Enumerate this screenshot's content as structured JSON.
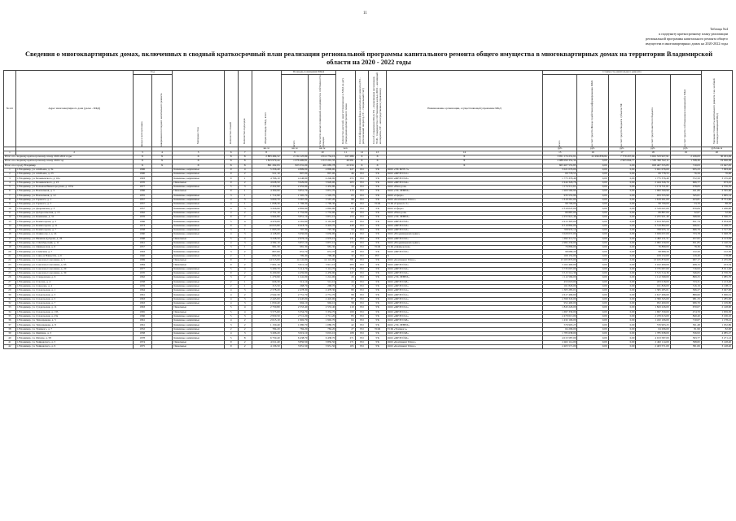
{
  "page_number": "11",
  "note_lines": [
    "Таблица №4",
    "к подпункту краткосрочному плану реализации",
    "региональной программы капитального ремонта общего",
    "имущества в многоквартирных домах на 2020-2022 годы"
  ],
  "title": "Сведения о многоквартирных домах, включенных в сводный краткосрочный план реализации региональной программы капитального ремонта общего имущества в многоквартирных домах на территории Владимирской области на 2020 - 2022 годы",
  "header": {
    "col_num": "№ п/п",
    "col_address": "Адрес многоквартирного дома (далее - МКД)",
    "group_year": "Год",
    "col_year_built": "ввода в эксплуатацию",
    "col_year_repair": "завершения последнего капитального ремонта",
    "col_material": "Материал стен",
    "col_floors": "Количество этажей",
    "col_entrances": "Количество подъездов",
    "col_area_total": "общая площадь МКД, всего",
    "group_area": "Площадь помещений МКД",
    "col_area_all": "всего",
    "col_area_owned": "в том числе жилых помещений, находящихся в собственности граждан",
    "col_residents": "Количество жителей, зарегистрированных в МКД на дату утверждения краткосрочного плана",
    "col_fund": "Способ формирования фонда капитального ремонта (РО - региональный оператор, СС - специальный счет)",
    "col_mgmt": "Способ управления МКД (УК - управляющая организация, ТСЖ - товарищество собственников жилья, ЖСК - жилищный кооператив, НУ - непосредственное управление)",
    "col_org": "Наименование организации, осуществляющей управление МКД",
    "group_cost": "Стоимость капитального ремонта",
    "col_cost_all": "всего",
    "col_cost_fed": "за счет средств Фонда содействия реформированию ЖКХ",
    "col_cost_reg": "за счет средств бюджета субъекта РФ",
    "col_cost_mun": "за счет средств местного бюджета",
    "col_cost_own": "за счет средств собственников помещений в МКД",
    "col_unit_cost": "Удельная стоимость капитального ремонта 1 кв. м общей площади помещений МКД",
    "col_limit": "Предельная стоимость капитального ремонта 1 кв. м общей площади помещений МКД",
    "units": [
      "кв. м",
      "кв. м",
      "кв. м",
      "чел.",
      "руб.",
      "руб.",
      "руб.",
      "руб.",
      "руб.",
      "руб./кв. м",
      "руб./кв. м"
    ],
    "col_numbers": [
      "1",
      "2",
      "3",
      "4",
      "5",
      "6",
      "7",
      "8",
      "9",
      "10",
      "11",
      "12",
      "13",
      "14",
      "15",
      "16",
      "17",
      "18",
      "19",
      "20"
    ]
  },
  "totals": [
    {
      "label": "Итого по сводному краткосрочному плану 2020-2022 годы",
      "x": "X",
      "area": "2 883 484,52",
      "live": "2 134 125,99",
      "owned": "2 012 754,16",
      "res": "107 086",
      "org": "X",
      "cost": "3 951 174 231,91",
      "fed": "22 296 858,84",
      "reg": "7 779 457,94",
      "mun": "3 601 533 927,91",
      "own": "2 226,63",
      "lim": "30 291,49"
    },
    {
      "label": "Итого по сводному краткосрочному плану 2020 год",
      "x": "X",
      "area": "1 823 979,44",
      "live": "1 076 400,81",
      "owned": "1 013 291,33",
      "res": "49 091",
      "org": "X",
      "cost": "2 088 090 352,34",
      "fed": "0,00",
      "reg": "2 963 664,77",
      "mun": "1 565 390 322,11",
      "own": "1 538,30",
      "lim": "19 026,38"
    },
    {
      "label": "Итого по городу Владимир",
      "x": "X",
      "area": "861 292,93",
      "live": "823 331,00",
      "owned": "461 685,78",
      "res": "22 034",
      "org": "X",
      "cost": "603 407 555,85",
      "fed": "0,00",
      "reg": "0,00",
      "mun": "603 407 555,85",
      "own": "710,03",
      "lim": "15 647,05"
    }
  ],
  "rows": [
    {
      "n": "1",
      "a": "г. Владимир, ул. Алябьева, д. 3а",
      "y": "1996",
      "m": "Каменные, кирпичные",
      "f": "9",
      "e": "4",
      "t": "5 256,40",
      "l": "4 809,00",
      "o": "4 809,00",
      "p": "227",
      "fd": "РО",
      "mg": "УК",
      "org": "ООО «УК ЖЭУ-5»",
      "c": "5 021 076,00",
      "u": "955,23",
      "lim": "7 093,46"
    },
    {
      "n": "2",
      "a": "г. Владимир, ул. Алябьева, д. 23",
      "y": "1990",
      "m": "Каменные, кирпичные",
      "f": "9",
      "e": "2",
      "t": "911,10",
      "l": "807,00",
      "o": "807,00",
      "p": "46",
      "fd": "РО",
      "mg": "УК",
      "org": "ООО «ЖРЭП №1»",
      "c": "69 778,55",
      "u": "76,59",
      "lim": "76,90"
    },
    {
      "n": "3",
      "a": "г. Владимир, ул. Безыменского, д. 16а",
      "y": "1993",
      "m": "Каменные, кирпичные",
      "f": "9",
      "e": "1",
      "t": "4 766,10",
      "l": "4 246,90",
      "o": "4 246,90",
      "p": "255",
      "fd": "РО",
      "mg": "УК",
      "org": "ООО «ЖРЭП №3»",
      "c": "1 775 376,49",
      "u": "372,50",
      "lim": "3 135,20"
    },
    {
      "n": "4",
      "a": "г. Владимир, ул. Безыменского, д. 23",
      "y": "1970",
      "m": "Панельные",
      "f": "9",
      "e": "2",
      "t": "4 028,50",
      "l": "3 929,00",
      "o": "3 929,00",
      "p": "203",
      "fd": "РО",
      "mg": "УК",
      "org": "ООО «ЖРЭП №4»",
      "c": "2 444 326,76",
      "u": "606,77",
      "lim": "673,45"
    },
    {
      "n": "5",
      "a": "г. Владимир, ул. Большая Нижегородская, д. 103а",
      "y": "1977",
      "m": "Каменные, кирпичные",
      "f": "5",
      "e": "3",
      "t": "2 452,90",
      "l": "2 452,90",
      "o": "2 452,90",
      "p": "74",
      "fd": "РО",
      "mg": "УК",
      "org": "ООО «Наш дом»",
      "c": "1 174 511,61",
      "u": "478,83",
      "lim": "4 376,70"
    },
    {
      "n": "6",
      "a": "г. Владимир, ул. Вокзальная, д. 3",
      "y": "1966",
      "m": "Панельные",
      "f": "9",
      "e": "1",
      "t": "4 300,90",
      "l": "3 851,70",
      "o": "3 851,70",
      "p": "213",
      "fd": "РО",
      "mg": "УК",
      "org": "ООО «УК ЛЕВЕЛ»",
      "c": "1 900 560,90",
      "u": "441,89",
      "lim": "2 565,60"
    },
    {
      "n": "7",
      "a": "г. Владимир, ул. Вокзальная, д. 12",
      "y": "1955",
      "m": "Каменные, кирпичные",
      "f": "3",
      "e": "1",
      "t": "1 712,90",
      "l": "1 505,70",
      "o": "1 505,70",
      "p": "63",
      "fd": "РО",
      "mg": "УК",
      "org": "ООО «Сфера»",
      "c": "933 555,90",
      "u": "545,01",
      "lim": "1 665,14"
    },
    {
      "n": "8",
      "a": "г. Владимир, ул. Горького, д. 1",
      "y": "1957",
      "m": "Каменные, кирпичные",
      "f": "4",
      "e": "3",
      "t": "3 820,70",
      "l": "3 567,20",
      "o": "3 567,20",
      "p": "98",
      "fd": "РО",
      "mg": "УК",
      "org": "ООО «Континент Плюс»",
      "c": "1 619 261,00",
      "u": "423,81",
      "lim": "8 751,60"
    },
    {
      "n": "9",
      "a": "г. Владимир, ул. Горького, д. 5",
      "y": "1957",
      "m": "Каменные, кирпичные",
      "f": "4",
      "e": "1",
      "t": "1 838,30",
      "l": "1 796,30",
      "o": "1 796,30",
      "p": "87",
      "fd": "РО",
      "mg": "ТСЖ",
      "org": "ТСЖ «Горького 5»",
      "c": "98 709,00",
      "u": "53,70",
      "lim": "88,50"
    },
    {
      "n": "10",
      "a": "г. Владимир, ул. Дворянская, д. 3",
      "y": "1957",
      "m": "Каменные, кирпичные",
      "f": "4",
      "e": "3",
      "t": "3 456,90",
      "l": "2 892,90",
      "o": "2 892,90",
      "p": "110",
      "fd": "РО",
      "mg": "УК",
      "org": "ООО «Сфера»",
      "c": "2 319 047,00",
      "u": "670,84",
      "lim": "1 206,90"
    },
    {
      "n": "11",
      "a": "г. Владимир, ул. Добросельская, д. 13",
      "y": "1962",
      "m": "Каменные, кирпичные",
      "f": "4",
      "e": "2",
      "t": "2 751,10",
      "l": "1 752,00",
      "o": "1 752,00",
      "p": "65",
      "fd": "РО",
      "mg": "УК",
      "org": "ООО «Наш дом»",
      "c": "89 887,00",
      "u": "32,67",
      "lim": "32,90"
    },
    {
      "n": "12",
      "a": "г. Владимир, ул. Каманина, д. 31",
      "y": "1976",
      "m": "Каменные, кирпичные",
      "f": "9",
      "e": "2",
      "t": "3 964,80",
      "l": "3 851,10",
      "o": "3 851,10",
      "p": "153",
      "fd": "РО",
      "mg": "УК",
      "org": "ООО «УК ЛЕВЕЛ»",
      "c": "2 255 921,46",
      "u": "568,99",
      "lim": "3 506,57"
    },
    {
      "n": "13",
      "a": "г. Владимир, ул. Комиссарова, д. 3",
      "y": "1966",
      "m": "Каменные, кирпичные",
      "f": "5",
      "e": "4",
      "t": "4 470,00",
      "l": "4 191,60",
      "o": "4 191,60",
      "p": "197",
      "fd": "РО",
      "mg": "УК",
      "org": "ООО «ЖРЭП №3»",
      "c": "2 913 305,00",
      "u": "651,74",
      "lim": "3 054,92"
    },
    {
      "n": "14",
      "a": "г. Владимир, ул. Комиссарова, д. 51",
      "y": "1973",
      "m": "Каменные, кирпичные",
      "f": "9",
      "e": "4",
      "t": "10 053,80",
      "l": "9 418,70",
      "o": "9 418,70",
      "p": "448",
      "fd": "РО",
      "mg": "УК",
      "org": "ООО «ЖРЭП №3»",
      "c": "9 519 892,00",
      "u": "946,91",
      "lim": "5 248,57"
    },
    {
      "n": "15",
      "a": "г. Владимир, ул. Комиссарова, д. 7",
      "y": "1958",
      "m": "Каменные, кирпичные",
      "f": "3",
      "e": "1",
      "t": "1 063,20",
      "l": "797,30",
      "o": "797,30",
      "p": "53",
      "fd": "РО",
      "mg": "УК",
      "org": "ООО «ЖРЭП №3»",
      "c": "708 935,14",
      "u": "666,79",
      "lim": "1 517,50"
    },
    {
      "n": "16",
      "a": "г. Владимир, ул. Ленина пр-т, д. 24",
      "y": "1960",
      "m": "Каменные, кирпичные",
      "f": "4",
      "e": "3",
      "t": "4 128,00",
      "l": "3 650,00",
      "o": "3 650,00",
      "p": "212",
      "fd": "РО",
      "mg": "УК",
      "org": "ООО «Владимиржилсервис»",
      "c": "3 029 037,00",
      "u": "733,78",
      "lim": "5 048,78"
    },
    {
      "n": "17",
      "a": "г. Владимир, ул. Нижняя Дуброва, д. 26",
      "y": "1968",
      "m": "Панельные",
      "f": "5",
      "e": "4",
      "t": "3 258,50",
      "l": "2 976,10",
      "o": "2 976,10",
      "p": "131",
      "fd": "РО",
      "mg": "УК",
      "org": "ООО «ЖРЭП №5»",
      "c": "1 492 211,51",
      "u": "457,95",
      "lim": "4 123,84"
    },
    {
      "n": "18",
      "a": "г. Владимир, пр-т Октябрьский, д. 11",
      "y": "1961",
      "m": "Каменные, кирпичные",
      "f": "4",
      "e": "3",
      "t": "4 582,10",
      "l": "3 857,10",
      "o": "3 857,10",
      "p": "155",
      "fd": "РО",
      "mg": "УК",
      "org": "ООО «Владимиржилсервис»",
      "c": "2 982 230,00",
      "u": "651,85",
      "lim": "1 140,33"
    },
    {
      "n": "19",
      "a": "г. Владимир, ул. Офицерская, д. 6",
      "y": "1957",
      "m": "Каменные, кирпичные",
      "f": "3",
      "e": "1",
      "t": "981,30",
      "l": "981,30",
      "o": "981,30",
      "p": "40",
      "fd": "РО",
      "mg": "ТСЖ",
      "org": "ТСЖ «Офицерская»",
      "c": "76 899,00",
      "u": "78,36",
      "lim": "78,50"
    },
    {
      "n": "20",
      "a": "г. Владимир, ул. Слемская, д. 7",
      "y": "1963",
      "m": "Каменные, кирпичные",
      "f": "3",
      "e": "2",
      "t": "807,60",
      "l": "651,70",
      "o": "651,70",
      "p": "28",
      "fd": "РО",
      "mg": "УК",
      "org": "ООО «ЖРЭП №5»",
      "c": "98 689,20",
      "u": "122,20",
      "lim": "122,30"
    },
    {
      "n": "21",
      "a": "г. Владимир, ул. Сакко и Ванцетти, д. 6",
      "y": "1940",
      "m": "Каменные, кирпичные",
      "f": "2",
      "e": "1",
      "t": "843,50",
      "l": "799,40",
      "o": "799,40",
      "p": "32",
      "fd": "РО",
      "mg": "НУ",
      "org": "X",
      "c": "109 152,00",
      "u": "129,40",
      "lim": "178,08"
    },
    {
      "n": "22",
      "a": "г. Владимир, ул. Соколова-Соколенка, д. 5",
      "y": "1969",
      "m": "Панельные",
      "f": "9",
      "e": "7",
      "t": "14 513,00",
      "l": "14 141,00",
      "o": "14 141,00",
      "p": "581",
      "fd": "РО",
      "mg": "УК",
      "org": "ООО «Континент Плюс»",
      "c": "13 165 870,00",
      "u": "907,17",
      "lim": "2 235,83"
    },
    {
      "n": "23",
      "a": "г. Владимир, ул. Соколова-Соколенка, д. 6б",
      "y": "1984",
      "m": "Панельные",
      "f": "9",
      "e": "2",
      "t": "7 601,10",
      "l": "5 911,10",
      "o": "5 911,10",
      "p": "283",
      "fd": "РО",
      "mg": "УК",
      "org": "ООО «ЖРЭП №2»",
      "c": "3 102 400,09",
      "u": "408,15",
      "lim": "453,34"
    },
    {
      "n": "24",
      "a": "г. Владимир, ул. Соколова-Соколенка, д. 20",
      "y": "1977",
      "m": "Каменные, кирпичные",
      "f": "5",
      "e": "4",
      "t": "5 209,70",
      "l": "5 114,70",
      "o": "5 114,70",
      "p": "176",
      "fd": "РО",
      "mg": "УК",
      "org": "ООО «ЖРЭП №2»",
      "c": "3 735 007,00",
      "u": "716,93",
      "lim": "8 011,46"
    },
    {
      "n": "25",
      "a": "г. Владимир, ул. Соколова-Соколенка, д. 30",
      "y": "1970",
      "m": "Каменные, кирпичные",
      "f": "9",
      "e": "2",
      "t": "6 430,90",
      "l": "4 459,90",
      "o": "4 459,90",
      "p": "247",
      "fd": "РО",
      "mg": "УК",
      "org": "ООО «ЖРЭП №2»",
      "c": "3 515 514,36",
      "u": "546,65",
      "lim": "4 376,70"
    },
    {
      "n": "26",
      "a": "г. Владимир, ул. Ставровская, д. 6",
      "y": "1962",
      "m": "Каменные, кирпичные",
      "f": "3",
      "e": "2",
      "t": "1 279,90",
      "l": "1 241,00",
      "o": "1 241,00",
      "p": "43",
      "fd": "РО",
      "mg": "УК",
      "org": "ООО «УК ЛЕВЕЛ»",
      "c": "1 112 569,00",
      "u": "869,25",
      "lim": "1 085,70"
    },
    {
      "n": "27",
      "a": "г. Владимир, ул. Стасова, д. 4",
      "y": "1958",
      "m": "Каменные, кирпичные",
      "f": "2",
      "e": "1",
      "t": "626,30",
      "l": "512,10",
      "o": "512,10",
      "p": "24",
      "fd": "РО",
      "mg": "УК",
      "org": "ООО «ЖРЭП №8»",
      "c": "453 018,00",
      "u": "723,31",
      "lim": "1 213,40"
    },
    {
      "n": "28",
      "a": "г. Владимир, ул. Суворова, д. 4",
      "y": "1959",
      "m": "Каменные, кирпичные",
      "f": "2",
      "e": "1",
      "t": "313,50",
      "l": "268,70",
      "o": "268,70",
      "p": "15",
      "fd": "РО",
      "mg": "УК",
      "org": "ООО «ЖРЭП №5»",
      "c": "161 826,00",
      "u": "516,19",
      "lim": "2 108,11"
    },
    {
      "n": "29",
      "a": "г. Владимир, ул. Суздальская, д. 1",
      "y": "1964",
      "m": "Каменные, кирпичные",
      "f": "4",
      "e": "3",
      "t": "2 578,20",
      "l": "2 478,30",
      "o": "2 478,30",
      "p": "89",
      "fd": "РО",
      "mg": "УК",
      "org": "ООО «ЖРЭП №1»",
      "c": "1 305 285,01",
      "u": "506,27",
      "lim": "3 047,00"
    },
    {
      "n": "30",
      "a": "г. Владимир, ул. Суздальская, д. 3",
      "y": "1961",
      "m": "Каменные, кирпичные",
      "f": "4",
      "e": "2",
      "t": "2 942,30",
      "l": "2 751,70",
      "o": "2 751,70",
      "p": "98",
      "fd": "РО",
      "mg": "УК",
      "org": "ООО «ЖРЭП №1»",
      "c": "2 617 496,60",
      "u": "889,60",
      "lim": "3 006,01"
    },
    {
      "n": "31",
      "a": "г. Владимир, ул. Суздальская, д. 5",
      "y": "1963",
      "m": "Каменные, кирпичные",
      "f": "4",
      "e": "3",
      "t": "2 445,00",
      "l": "2 445,00",
      "o": "2 445,00",
      "p": "87",
      "fd": "РО",
      "mg": "УК",
      "org": "ООО «ЖРЭП №1»",
      "c": "2 399 345,00",
      "u": "981,33",
      "lim": "1 285,00"
    },
    {
      "n": "32",
      "a": "г. Владимир, ул. Суздальская, д. 7",
      "y": "1963",
      "m": "Каменные, кирпичные",
      "f": "4",
      "e": "3",
      "t": "1 050,40",
      "l": "994,10",
      "o": "994,10",
      "p": "58",
      "fd": "РО",
      "mg": "УК",
      "org": "ООО «ЖРЭП №1»",
      "c": "952 400,00",
      "u": "906,70",
      "lim": "1 109,80"
    },
    {
      "n": "33",
      "a": "г. Владимир, ул. Суздальская, д. 11",
      "y": "1963",
      "m": "Панельные",
      "f": "5",
      "e": "4",
      "t": "2 750,80",
      "l": "2 553,40",
      "o": "2 553,40",
      "p": "110",
      "fd": "РО",
      "mg": "УК",
      "org": "ООО «ЖРЭП №1»",
      "c": "1 843 226,00",
      "u": "670,07",
      "lim": "2 148,90"
    },
    {
      "n": "34",
      "a": "г. Владимир, ул. Суздальская, д. 13б",
      "y": "1965",
      "m": "Панельные",
      "f": "5",
      "e": "4",
      "t": "3 575,60",
      "l": "3 354,70",
      "o": "3 354,70",
      "p": "109",
      "fd": "РО",
      "mg": "УК",
      "org": "ООО «ЖРЭП №1»",
      "c": "1 697 330,00",
      "u": "474,70",
      "lim": "1 659,30"
    },
    {
      "n": "35",
      "a": "г. Владимир, ул. Суздальская, д. 23а",
      "y": "1966",
      "m": "Каменные, кирпичные",
      "f": "5",
      "e": "3",
      "t": "2 950,50",
      "l": "2 711,20",
      "o": "2 711,20",
      "p": "83",
      "fd": "РО",
      "mg": "УК",
      "org": "ООО «ЖРЭП №1»",
      "c": "2 479 613,00",
      "u": "840,40",
      "lim": "3 106,10"
    },
    {
      "n": "36",
      "a": "г. Владимир, ул. Тихонравова, д. 5",
      "y": "1961",
      "m": "Каменные, кирпичные",
      "f": "4",
      "e": "2",
      "t": "2 015,10",
      "l": "1 902,70",
      "o": "1 902,70",
      "p": "64",
      "fd": "РО",
      "mg": "УК",
      "org": "ООО «ЖРЭП №8»",
      "c": "1 432 106,00",
      "u": "710,67",
      "lim": "1 178,41"
    },
    {
      "n": "37",
      "a": "г. Владимир, ул. Тихонравова, д. 8",
      "y": "1961",
      "m": "Каменные, кирпичные",
      "f": "3",
      "e": "2",
      "t": "1 150,40",
      "l": "1 080,70",
      "o": "1 080,70",
      "p": "42",
      "fd": "РО",
      "mg": "УК",
      "org": "ООО «УК ЛЕВЕЛ»",
      "c": "576 903,25",
      "u": "501,48",
      "lim": "1 032,86"
    },
    {
      "n": "38",
      "a": "г. Владимир, ул. Урицкого, д. 7",
      "y": "1952",
      "m": "Каменные, кирпичные",
      "f": "2",
      "e": "2",
      "t": "784,20",
      "l": "784,20",
      "o": "784,20",
      "p": "27",
      "fd": "РО",
      "mg": "ТСЖ",
      "org": "ТСЖ «Урицкого»",
      "c": "64 296,00",
      "u": "81,99",
      "lim": "82,00"
    },
    {
      "n": "39",
      "a": "г. Владимир, ул. Фейгина, д. 3",
      "y": "1958",
      "m": "Каменные, кирпичные",
      "f": "4",
      "e": "3",
      "t": "3 206,20",
      "l": "3 019,10",
      "o": "3 019,10",
      "p": "108",
      "fd": "РО",
      "mg": "УК",
      "org": "ООО «ЖРЭП №8»",
      "c": "1 785 638,00",
      "u": "556,93",
      "lim": "4 085,27"
    },
    {
      "n": "40",
      "a": "г. Владимир, ул. Фрунзе, д. 58",
      "y": "1978",
      "m": "Каменные, кирпичные",
      "f": "5",
      "e": "8",
      "t": "6 759,40",
      "l": "6 438,70",
      "o": "6 438,70",
      "p": "271",
      "fd": "РО",
      "mg": "УК",
      "org": "ООО «ЖРЭП №6»",
      "c": "4 013 587,00",
      "u": "593,77",
      "lim": "3 271,12"
    },
    {
      "n": "41",
      "a": "г. Владимир, ул. Чайковского, д. 5",
      "y": "1974",
      "m": "Панельные",
      "f": "9",
      "e": "2",
      "t": "4 011,40",
      "l": "3 850,50",
      "o": "3 850,50",
      "p": "171",
      "fd": "РО",
      "mg": "УК",
      "org": "ООО «Континент Плюс»",
      "c": "2 402 114,00",
      "u": "598,82",
      "lim": "3 148,40"
    },
    {
      "n": "42",
      "a": "г. Владимир, ул. Чайковского, д. 9",
      "y": "1975",
      "m": "Панельные",
      "f": "9",
      "e": "2",
      "t": "4 136,50",
      "l": "3 951,50",
      "o": "3 951,50",
      "p": "165",
      "fd": "РО",
      "mg": "УК",
      "org": "ООО «Континент Плюс»",
      "c": "2 403 571,00",
      "u": "581,06",
      "lim": "3 148,40"
    }
  ]
}
